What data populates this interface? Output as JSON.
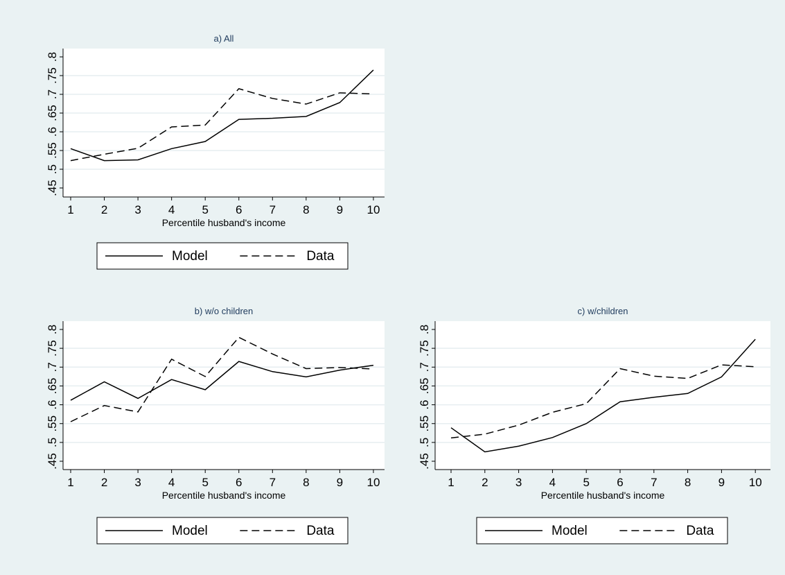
{
  "colors": {
    "background": "#eaf2f3",
    "plot_area": "#ffffff",
    "gridline": "#e6eef0",
    "line": "#000000",
    "title": "#1e3a5c"
  },
  "chart_data": [
    {
      "type": "line",
      "title": "a) All",
      "xlabel": "Percentile husband's income",
      "ylabel": "",
      "categories": [
        "1",
        "2",
        "3",
        "4",
        "5",
        "6",
        "7",
        "8",
        "9",
        "10"
      ],
      "x": [
        1,
        2,
        3,
        4,
        5,
        6,
        7,
        8,
        9,
        10
      ],
      "yticks": [
        ".45",
        ".5",
        ".55",
        ".6",
        ".65",
        ".7",
        ".75",
        ".8"
      ],
      "ylim": [
        0.45,
        0.8
      ],
      "grid": true,
      "legend_position": "bottom",
      "series": [
        {
          "name": "Model",
          "style": "solid",
          "values": [
            0.555,
            0.523,
            0.525,
            0.555,
            0.574,
            0.633,
            0.636,
            0.641,
            0.678,
            0.765
          ]
        },
        {
          "name": "Data",
          "style": "dashed",
          "values": [
            0.523,
            0.54,
            0.556,
            0.613,
            0.618,
            0.715,
            0.689,
            0.674,
            0.704,
            0.701
          ]
        }
      ]
    },
    {
      "type": "line",
      "title": "b) w/o children",
      "xlabel": "Percentile husband's income",
      "ylabel": "",
      "categories": [
        "1",
        "2",
        "3",
        "4",
        "5",
        "6",
        "7",
        "8",
        "9",
        "10"
      ],
      "x": [
        1,
        2,
        3,
        4,
        5,
        6,
        7,
        8,
        9,
        10
      ],
      "yticks": [
        ".45",
        ".5",
        ".55",
        ".6",
        ".65",
        ".7",
        ".75",
        ".8"
      ],
      "ylim": [
        0.45,
        0.8
      ],
      "grid": true,
      "legend_position": "bottom",
      "series": [
        {
          "name": "Model",
          "style": "solid",
          "values": [
            0.612,
            0.661,
            0.617,
            0.667,
            0.64,
            0.715,
            0.688,
            0.674,
            0.692,
            0.705
          ]
        },
        {
          "name": "Data",
          "style": "dashed",
          "values": [
            0.555,
            0.598,
            0.581,
            0.721,
            0.675,
            0.779,
            0.735,
            0.696,
            0.699,
            0.695
          ]
        }
      ]
    },
    {
      "type": "line",
      "title": "c) w/children",
      "xlabel": "Percentile husband's income",
      "ylabel": "",
      "categories": [
        "1",
        "2",
        "3",
        "4",
        "5",
        "6",
        "7",
        "8",
        "9",
        "10"
      ],
      "x": [
        1,
        2,
        3,
        4,
        5,
        6,
        7,
        8,
        9,
        10
      ],
      "yticks": [
        ".45",
        ".5",
        ".55",
        ".6",
        ".65",
        ".7",
        ".75",
        ".8"
      ],
      "ylim": [
        0.45,
        0.8
      ],
      "grid": true,
      "legend_position": "bottom",
      "series": [
        {
          "name": "Model",
          "style": "solid",
          "values": [
            0.539,
            0.475,
            0.49,
            0.513,
            0.55,
            0.608,
            0.62,
            0.63,
            0.674,
            0.774
          ]
        },
        {
          "name": "Data",
          "style": "dashed",
          "values": [
            0.512,
            0.522,
            0.546,
            0.58,
            0.603,
            0.696,
            0.676,
            0.67,
            0.706,
            0.701
          ]
        }
      ]
    }
  ]
}
